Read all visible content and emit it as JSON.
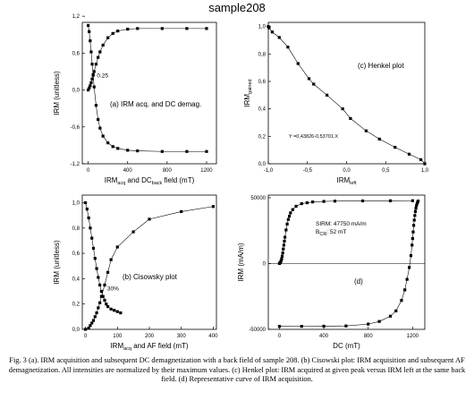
{
  "title": "sample208",
  "caption": "Fig. 3 (a). IRM acquisition and subsequent DC demagnetization with a back field of sample 208. (b) Cisowski plot: IRM acquisition and subsequent AF demagnetization. All intensities are normalized by their maximum values. (c) Henkel plot: IRM acquired at given peak versus IRM left at the same back field. (d) Representative curve of IRM acquisition.",
  "chart_data": [
    {
      "panel": "a",
      "type": "line",
      "label": "(a) IRM acq. and DC demag.",
      "xlabel": {
        "main": "IRM",
        "sub1": "acq",
        "mid": " and DC",
        "sub2": "back",
        "tail": " field (mT)"
      },
      "ylabel": "IRM (unitless)",
      "xlim": [
        -60,
        1300
      ],
      "ylim": [
        -1.2,
        1.1
      ],
      "xticks": [
        0,
        400,
        800,
        1200
      ],
      "yticks": [
        -1.2,
        -0.6,
        0.0,
        0.6,
        1.2
      ],
      "ytick_labels": [
        "-1,2",
        "-0,6",
        "0,0",
        "0,6",
        "1,2"
      ],
      "annotation": "0.25",
      "series": [
        {
          "x": [
            0,
            10,
            20,
            30,
            40,
            50,
            60,
            80,
            100,
            120,
            150,
            200,
            250,
            300,
            400,
            500,
            750,
            1000,
            1200
          ],
          "y": [
            0.0,
            0.03,
            0.07,
            0.12,
            0.18,
            0.24,
            0.3,
            0.42,
            0.53,
            0.62,
            0.73,
            0.85,
            0.92,
            0.96,
            0.99,
            1.0,
            1.0,
            1.0,
            1.0
          ]
        },
        {
          "x": [
            0,
            10,
            20,
            30,
            40,
            50,
            60,
            80,
            100,
            120,
            150,
            200,
            250,
            300,
            400,
            500,
            750,
            1000,
            1200
          ],
          "y": [
            1.05,
            0.95,
            0.8,
            0.62,
            0.42,
            0.25,
            0.05,
            -0.25,
            -0.48,
            -0.62,
            -0.75,
            -0.86,
            -0.92,
            -0.95,
            -0.98,
            -0.99,
            -1.0,
            -1.0,
            -1.0
          ]
        }
      ]
    },
    {
      "panel": "c",
      "type": "line",
      "label": "(c) Henkel plot",
      "xlabel": {
        "main": "IRM",
        "sub": "left"
      },
      "ylabel": {
        "main": "IRM",
        "sub": "gained"
      },
      "xlim": [
        -1.0,
        1.0
      ],
      "ylim": [
        0.0,
        1.03
      ],
      "xticks": [
        -1.0,
        -0.5,
        0.0,
        0.5,
        1.0
      ],
      "xtick_labels": [
        "-1,0",
        "-0,5",
        "0,0",
        "0,5",
        "1,0"
      ],
      "yticks": [
        0.0,
        0.2,
        0.4,
        0.6,
        0.8,
        1.0
      ],
      "ytick_labels": [
        "0,0",
        "0,2",
        "0,4",
        "0,6",
        "0,8",
        "1,0"
      ],
      "equation": "Y =0,43826-0,53701.X",
      "series": [
        {
          "x": [
            -1.0,
            -0.99,
            -0.95,
            -0.86,
            -0.75,
            -0.62,
            -0.48,
            -0.42,
            -0.25,
            -0.05,
            0.05,
            0.25,
            0.42,
            0.62,
            0.8,
            0.95,
            1.0
          ],
          "y": [
            1.0,
            0.99,
            0.96,
            0.92,
            0.85,
            0.73,
            0.62,
            0.58,
            0.5,
            0.4,
            0.33,
            0.24,
            0.18,
            0.12,
            0.07,
            0.03,
            0.0
          ]
        }
      ]
    },
    {
      "panel": "b",
      "type": "line",
      "label": "(b) Cisowsky plot",
      "xlabel": {
        "main": "IRM",
        "sub": "acq",
        "tail": " and AF field (mT)"
      },
      "ylabel": "IRM (unitless)",
      "xlim": [
        -10,
        410
      ],
      "ylim": [
        0.0,
        1.06
      ],
      "xticks": [
        0,
        100,
        200,
        300,
        400
      ],
      "yticks": [
        0.0,
        0.2,
        0.4,
        0.6,
        0.8,
        1.0
      ],
      "ytick_labels": [
        "0,0",
        "0,2",
        "0,4",
        "0,6",
        "0,8",
        "1,0"
      ],
      "annotation": "30%",
      "series": [
        {
          "x": [
            0,
            10,
            15,
            20,
            25,
            30,
            35,
            40,
            45,
            50,
            60,
            70,
            80,
            100,
            150,
            200,
            300,
            400
          ],
          "y": [
            0.0,
            0.01,
            0.03,
            0.05,
            0.07,
            0.1,
            0.13,
            0.17,
            0.21,
            0.26,
            0.35,
            0.45,
            0.55,
            0.65,
            0.77,
            0.87,
            0.93,
            0.97
          ]
        },
        {
          "x": [
            0,
            5,
            10,
            15,
            20,
            25,
            30,
            35,
            40,
            45,
            50,
            55,
            60,
            65,
            70,
            80,
            90,
            100,
            110
          ],
          "y": [
            1.0,
            0.95,
            0.88,
            0.8,
            0.72,
            0.64,
            0.56,
            0.48,
            0.41,
            0.35,
            0.3,
            0.26,
            0.23,
            0.2,
            0.18,
            0.16,
            0.15,
            0.14,
            0.13
          ]
        }
      ]
    },
    {
      "panel": "d",
      "type": "line",
      "label": "(d)",
      "xlabel": "DC (mT)",
      "ylabel": "IRM (mA/m)",
      "xlim": [
        -100,
        1310
      ],
      "ylim": [
        -50000,
        52000
      ],
      "xticks": [
        0,
        400,
        800,
        1200
      ],
      "yticks": [
        -50000,
        0,
        50000
      ],
      "annotation_sirm": "SIRM: 47750 mA/m",
      "annotation_bcr": {
        "main": "B",
        "sub": "CR",
        "tail": ": 52 mT"
      },
      "series": [
        {
          "x": [
            0,
            5,
            10,
            15,
            20,
            25,
            30,
            35,
            40,
            45,
            50,
            60,
            70,
            80,
            90,
            100,
            120,
            150,
            200,
            250,
            300,
            400,
            500,
            750,
            1000,
            1200
          ],
          "y": [
            0,
            500,
            1000,
            2000,
            3500,
            5500,
            8000,
            11000,
            14000,
            17000,
            20000,
            25500,
            30000,
            33500,
            36000,
            38500,
            41000,
            43500,
            45500,
            46200,
            46800,
            47200,
            47400,
            47600,
            47700,
            47750
          ]
        },
        {
          "x": [
            0,
            200,
            400,
            600,
            800,
            900,
            1000,
            1050,
            1100,
            1130,
            1150,
            1170,
            1185,
            1195,
            1200,
            1205,
            1210,
            1215,
            1220,
            1225,
            1230,
            1235,
            1240,
            1245,
            1250
          ],
          "y": [
            -47750,
            -47700,
            -47600,
            -47400,
            -46000,
            -44000,
            -40000,
            -36000,
            -28000,
            -20000,
            -12000,
            -3000,
            6000,
            14000,
            19000,
            24000,
            29000,
            33000,
            36500,
            39500,
            42000,
            44000,
            45500,
            46700,
            47500
          ]
        }
      ]
    }
  ]
}
